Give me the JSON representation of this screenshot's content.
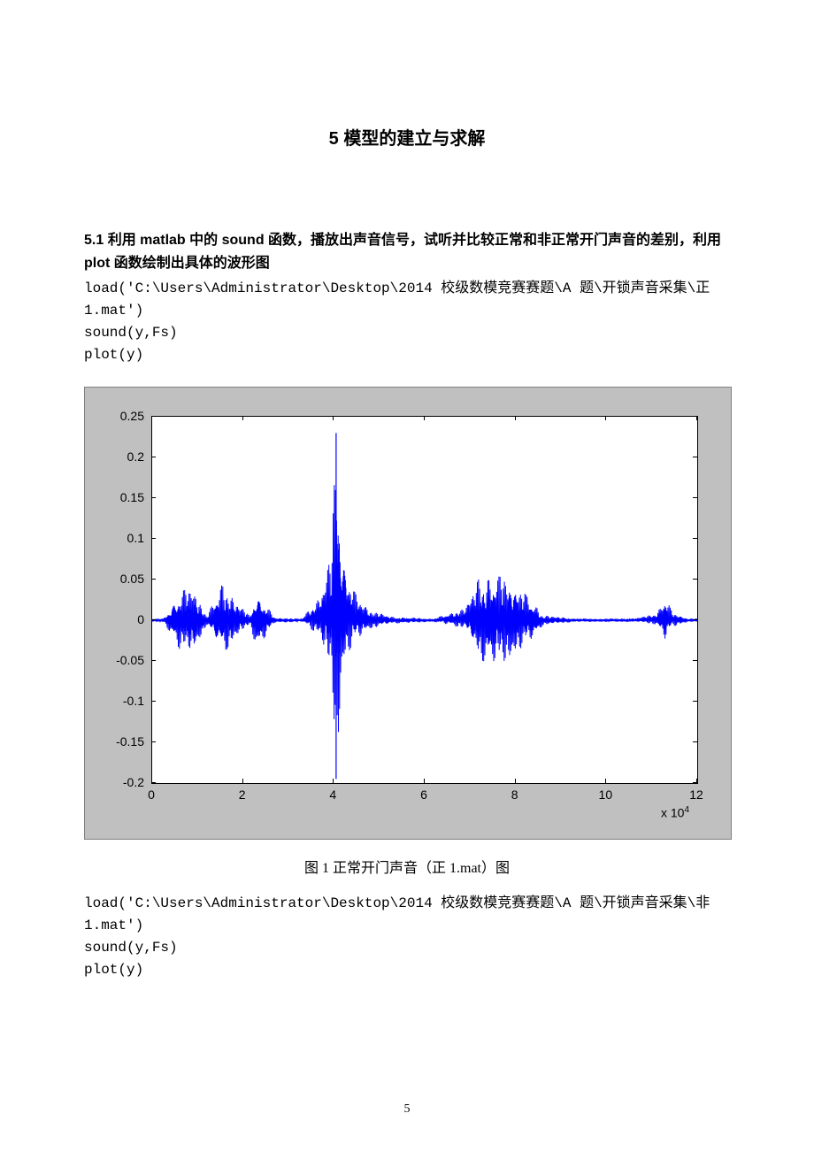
{
  "section": {
    "title": "5 模型的建立与求解"
  },
  "subsection": {
    "title": "5.1 利用 matlab 中的 sound 函数，播放出声音信号，试听并比较正常和非正常开门声音的差别，利用 plot 函数绘制出具体的波形图"
  },
  "code1": {
    "line1": "load('C:\\Users\\Administrator\\Desktop\\2014 校级数模竞赛赛题\\A 题\\开锁声音采集\\正 1.mat')",
    "line2": "sound(y,Fs)",
    "line3": "plot(y)"
  },
  "figure1": {
    "caption": "图 1 正常开门声音（正 1.mat）图",
    "type": "line",
    "background_color": "#c0c0c0",
    "plot_bg": "#ffffff",
    "line_color": "#0000ff",
    "axis_color": "#000000",
    "xlim": [
      0,
      12
    ],
    "ylim": [
      -0.2,
      0.25
    ],
    "xticks": [
      0,
      2,
      4,
      6,
      8,
      10,
      12
    ],
    "yticks": [
      -0.2,
      -0.15,
      -0.1,
      -0.05,
      0,
      0.05,
      0.1,
      0.15,
      0.2,
      0.25
    ],
    "ytick_labels": [
      "-0.2",
      "-0.15",
      "-0.1",
      "-0.05",
      "0",
      "0.05",
      "0.1",
      "0.15",
      "0.2",
      "0.25"
    ],
    "xtick_labels": [
      "0",
      "2",
      "4",
      "6",
      "8",
      "10",
      "12"
    ],
    "x_exponent": "x 10",
    "x_exponent_sup": "4",
    "tick_fontsize": 14,
    "waveform_envelope": [
      {
        "x": 0.25,
        "ymin": -0.002,
        "ymax": 0.002
      },
      {
        "x": 0.6,
        "ymin": -0.035,
        "ymax": 0.035
      },
      {
        "x": 0.9,
        "ymin": -0.04,
        "ymax": 0.04
      },
      {
        "x": 1.2,
        "ymin": -0.005,
        "ymax": 0.005
      },
      {
        "x": 1.55,
        "ymin": -0.042,
        "ymax": 0.045
      },
      {
        "x": 1.9,
        "ymin": -0.018,
        "ymax": 0.02
      },
      {
        "x": 2.15,
        "ymin": -0.005,
        "ymax": 0.005
      },
      {
        "x": 2.3,
        "ymin": -0.035,
        "ymax": 0.035
      },
      {
        "x": 2.7,
        "ymin": -0.003,
        "ymax": 0.003
      },
      {
        "x": 3.3,
        "ymin": -0.002,
        "ymax": 0.002
      },
      {
        "x": 3.7,
        "ymin": -0.02,
        "ymax": 0.03
      },
      {
        "x": 3.95,
        "ymin": -0.07,
        "ymax": 0.08
      },
      {
        "x": 4.05,
        "ymin": -0.195,
        "ymax": 0.23
      },
      {
        "x": 4.15,
        "ymin": -0.085,
        "ymax": 0.105
      },
      {
        "x": 4.3,
        "ymin": -0.04,
        "ymax": 0.055
      },
      {
        "x": 4.5,
        "ymin": -0.025,
        "ymax": 0.03
      },
      {
        "x": 4.8,
        "ymin": -0.01,
        "ymax": 0.012
      },
      {
        "x": 5.3,
        "ymin": -0.004,
        "ymax": 0.004
      },
      {
        "x": 6.2,
        "ymin": -0.002,
        "ymax": 0.002
      },
      {
        "x": 6.9,
        "ymin": -0.01,
        "ymax": 0.015
      },
      {
        "x": 7.2,
        "ymin": -0.048,
        "ymax": 0.052
      },
      {
        "x": 7.5,
        "ymin": -0.055,
        "ymax": 0.055
      },
      {
        "x": 7.8,
        "ymin": -0.05,
        "ymax": 0.052
      },
      {
        "x": 8.1,
        "ymin": -0.035,
        "ymax": 0.038
      },
      {
        "x": 8.4,
        "ymin": -0.022,
        "ymax": 0.022
      },
      {
        "x": 8.6,
        "ymin": -0.006,
        "ymax": 0.006
      },
      {
        "x": 9.3,
        "ymin": -0.002,
        "ymax": 0.002
      },
      {
        "x": 10.6,
        "ymin": -0.002,
        "ymax": 0.002
      },
      {
        "x": 11.1,
        "ymin": -0.005,
        "ymax": 0.008
      },
      {
        "x": 11.3,
        "ymin": -0.025,
        "ymax": 0.028
      },
      {
        "x": 11.45,
        "ymin": -0.008,
        "ymax": 0.01
      },
      {
        "x": 11.8,
        "ymin": -0.002,
        "ymax": 0.002
      }
    ]
  },
  "code2": {
    "line1": "load('C:\\Users\\Administrator\\Desktop\\2014 校级数模竞赛赛题\\A 题\\开锁声音采集\\非 1.mat')",
    "line2": "sound(y,Fs)",
    "line3": "plot(y)"
  },
  "page_number": "5"
}
